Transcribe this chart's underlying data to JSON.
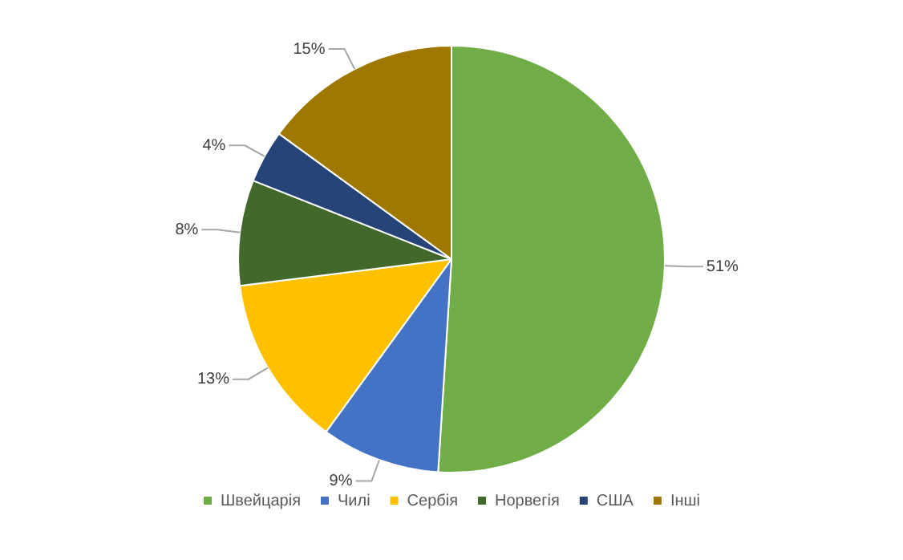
{
  "chart_data": {
    "type": "pie",
    "categories": [
      "Швейцарія",
      "Чилі",
      "Сербія",
      "Норвегія",
      "США",
      "Інші"
    ],
    "values": [
      51,
      9,
      13,
      8,
      4,
      15
    ],
    "value_labels": [
      "51%",
      "9%",
      "13%",
      "8%",
      "4%",
      "15%"
    ],
    "colors": [
      "#70ad47",
      "#4472c4",
      "#ffc000",
      "#43682b",
      "#264478",
      "#9e7800"
    ],
    "legend": "bottom"
  }
}
